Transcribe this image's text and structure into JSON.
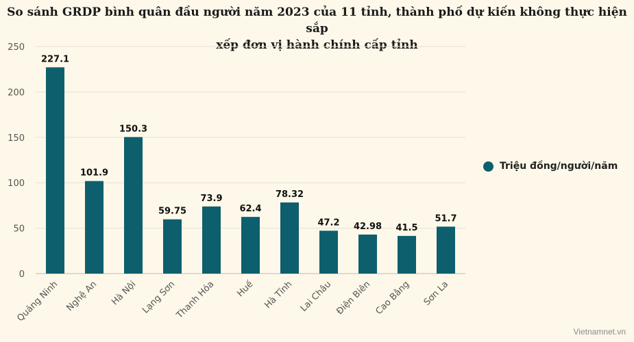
{
  "title_line1": "So sánh GRDP bình quân đầu người năm 2023 của 11 tỉnh, thành phố dự kiến không thực hiện sắp",
  "title_line2": "xếp đơn vị hành chính cấp tỉnh",
  "watermark": "Vietnamnet.vn",
  "colors": {
    "background": "#fdf8e9",
    "bar": "#0d5f6e",
    "grid": "#e6e1d2",
    "axis_text": "#555555",
    "label_text": "#111111"
  },
  "chart_data": {
    "type": "bar",
    "title": "So sánh GRDP bình quân đầu người năm 2023 của 11 tỉnh, thành phố dự kiến không thực hiện sắp xếp đơn vị hành chính cấp tỉnh",
    "xlabel": "",
    "ylabel": "",
    "categories": [
      "Quảng Ninh",
      "Nghệ An",
      "Hà Nội",
      "Lạng Sơn",
      "Thanh Hóa",
      "Huế",
      "Hà Tĩnh",
      "Lai Châu",
      "Điện Biên",
      "Cao Bằng",
      "Sơn La"
    ],
    "series": [
      {
        "name": "Triệu đồng/người/năm",
        "values": [
          227.1,
          101.9,
          150.3,
          59.75,
          73.9,
          62.4,
          78.32,
          47.2,
          42.98,
          41.5,
          51.7
        ]
      }
    ],
    "data_labels": [
      "227.1",
      "101.9",
      "150.3",
      "59.75",
      "73.9",
      "62.4",
      "78.32",
      "47.2",
      "42.98",
      "41.5",
      "51.7"
    ],
    "ylim": [
      0,
      250
    ],
    "yticks": [
      0,
      50,
      100,
      150,
      200,
      250
    ],
    "grid": true,
    "legend_position": "right"
  }
}
